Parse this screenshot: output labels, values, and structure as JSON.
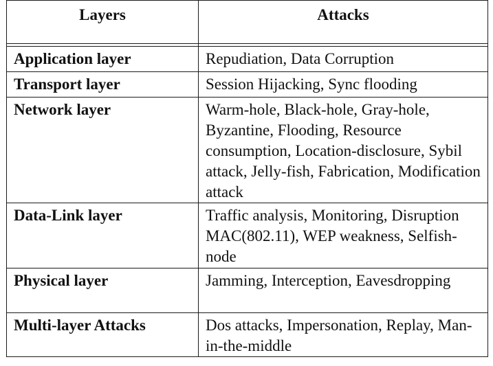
{
  "table": {
    "headers": [
      "Layers",
      "Attacks"
    ],
    "rows": [
      {
        "layer": "Application layer",
        "attacks": "Repudiation, Data Corruption"
      },
      {
        "layer": "Transport layer",
        "attacks": "Session Hijacking, Sync flooding"
      },
      {
        "layer": "Network layer",
        "attacks": "Warm-hole, Black-hole, Gray-hole, Byzantine, Flooding, Resource consumption, Location-disclosure, Sybil attack, Jelly-fish, Fabrication, Modification attack"
      },
      {
        "layer": "Data-Link layer",
        "attacks": "Traffic analysis, Monitoring, Disruption MAC(802.11), WEP weakness, Selfish-node"
      },
      {
        "layer": "Physical layer",
        "attacks": "Jamming, Interception, Eavesdropping"
      },
      {
        "layer": "Multi-layer Attacks",
        "attacks": "Dos attacks, Impersonation, Replay, Man-in-the-middle"
      }
    ]
  }
}
